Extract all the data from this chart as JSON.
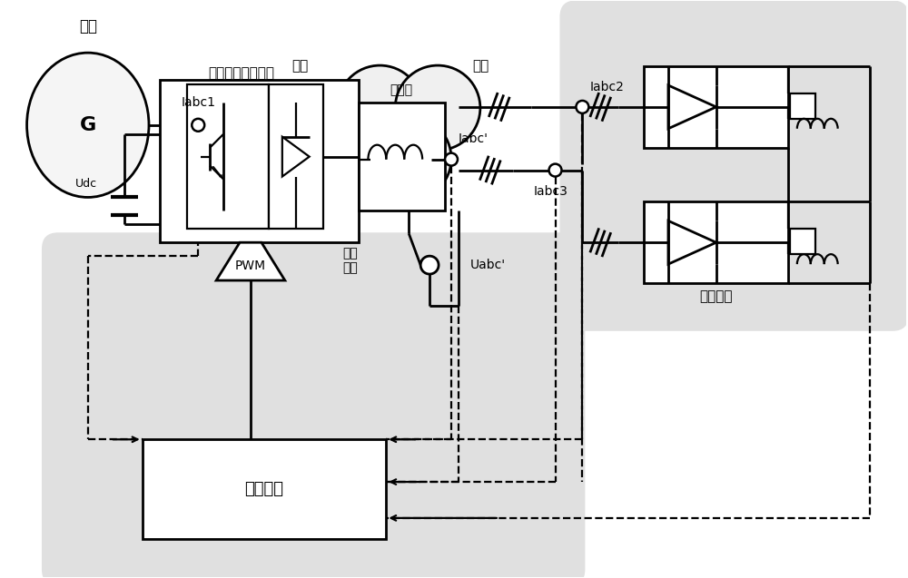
{
  "bg_color": "#ffffff",
  "gray_bg": "#e0e0e0",
  "lc": "#000000",
  "texts": {
    "diangwang": "电网",
    "G": "G",
    "Iabc1": "Iabc1",
    "yuanbian": "原边",
    "fubian": "副边",
    "buchang_raozhu": "补偿\n绕组",
    "Iabc2": "Iabc2",
    "Iabc3": "Iabc3",
    "Uabc_prime": "Uabc'",
    "zhengliu": "整流负载",
    "dianli_buchang": "电力电子补偿电路",
    "luboqi": "滤波器",
    "Udc": "Udc",
    "Iabc_c": "Iabc'",
    "PWM": "PWM",
    "kongzhi": "控制系统"
  },
  "figsize": [
    10.0,
    6.37
  ],
  "dpi": 100
}
